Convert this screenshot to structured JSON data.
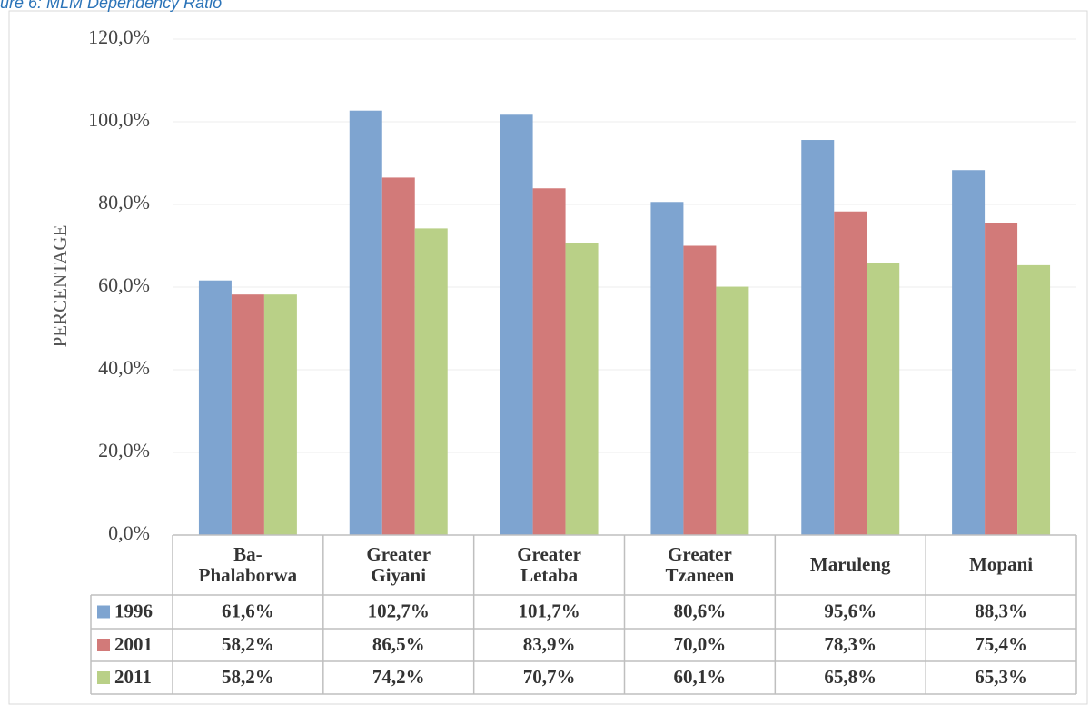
{
  "chart_data": {
    "type": "bar",
    "title": "ure 6: MLM Dependency Ratio",
    "ylabel": "PERCENTAGE",
    "categories": [
      "Ba-\nPhalaborwa",
      "Greater\nGiyani",
      "Greater\nLetaba",
      "Greater\nTzaneen",
      "Maruleng",
      "Mopani"
    ],
    "series": [
      {
        "name": "1996",
        "color": "#7ea4d0",
        "values": [
          61.6,
          102.7,
          101.7,
          80.6,
          95.6,
          88.3
        ],
        "value_labels": [
          "61,6%",
          "102,7%",
          "101,7%",
          "80,6%",
          "95,6%",
          "88,3%"
        ]
      },
      {
        "name": "2001",
        "color": "#d27a79",
        "values": [
          58.2,
          86.5,
          83.9,
          70.0,
          78.3,
          75.4
        ],
        "value_labels": [
          "58,2%",
          "86,5%",
          "83,9%",
          "70,0%",
          "78,3%",
          "75,4%"
        ]
      },
      {
        "name": "2011",
        "color": "#b9d087",
        "values": [
          58.2,
          74.2,
          70.7,
          60.1,
          65.8,
          65.3
        ],
        "value_labels": [
          "58,2%",
          "74,2%",
          "70,7%",
          "60,1%",
          "65,8%",
          "65,3%"
        ]
      }
    ],
    "ylim": [
      0,
      120
    ],
    "yticks": [
      {
        "value": 0,
        "label": "0,0%"
      },
      {
        "value": 20,
        "label": "20,0%"
      },
      {
        "value": 40,
        "label": "40,0%"
      },
      {
        "value": 60,
        "label": "60,0%"
      },
      {
        "value": 80,
        "label": "80,0%"
      },
      {
        "value": 100,
        "label": "100,0%"
      },
      {
        "value": 120,
        "label": "120,0%"
      }
    ],
    "grid": true
  }
}
